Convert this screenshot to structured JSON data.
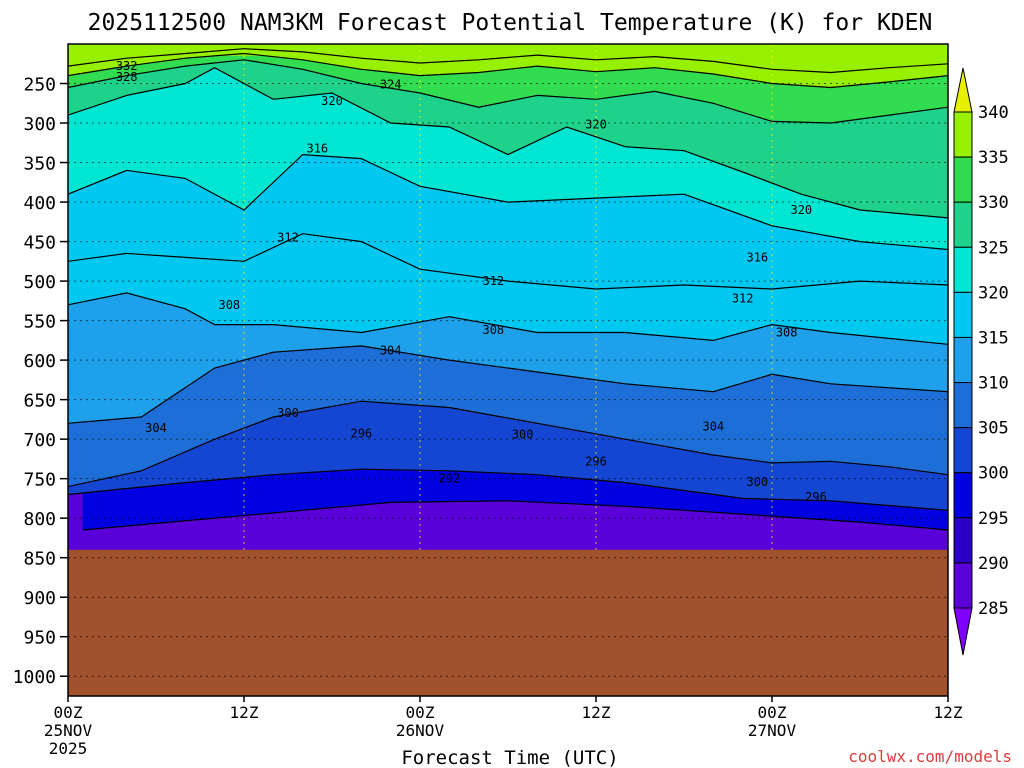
{
  "chart_data": {
    "type": "heatmap",
    "title": "2025112500 NAM3KM Forecast Potential Temperature (K) for KDEN",
    "xlabel": "Forecast Time (UTC)",
    "ylabel": "",
    "credit": "coolwx.com/models",
    "x_ticks": [
      {
        "hour": 0,
        "label": "00Z",
        "sub1": "25NOV",
        "sub2": "2025"
      },
      {
        "hour": 12,
        "label": "12Z",
        "sub1": "",
        "sub2": ""
      },
      {
        "hour": 24,
        "label": "00Z",
        "sub1": "26NOV",
        "sub2": ""
      },
      {
        "hour": 36,
        "label": "12Z",
        "sub1": "",
        "sub2": ""
      },
      {
        "hour": 48,
        "label": "00Z",
        "sub1": "27NOV",
        "sub2": ""
      },
      {
        "hour": 60,
        "label": "12Z",
        "sub1": "",
        "sub2": ""
      }
    ],
    "xlim_hours": [
      0,
      60
    ],
    "y_ticks": [
      250,
      300,
      350,
      400,
      450,
      500,
      550,
      600,
      650,
      700,
      750,
      800,
      850,
      900,
      950,
      1000
    ],
    "ylim_hPa": [
      200,
      1025
    ],
    "surface_pressure_hPa": 840,
    "colorbar": {
      "labels": [
        "285",
        "290",
        "295",
        "300",
        "305",
        "310",
        "315",
        "320",
        "325",
        "330",
        "335",
        "340"
      ],
      "colors": [
        "#7f00ff",
        "#5a00d8",
        "#2a00c8",
        "#0000e0",
        "#1446d2",
        "#1e6ed7",
        "#1ea0eb",
        "#00c8f0",
        "#00e6d2",
        "#1ed28c",
        "#32dc50",
        "#96f000",
        "#e6f000"
      ]
    },
    "grid": true,
    "contours": [
      {
        "theta": 292,
        "points": [
          [
            1,
            815
          ],
          [
            10,
            800
          ],
          [
            16,
            790
          ],
          [
            22,
            780
          ],
          [
            30,
            778
          ],
          [
            38,
            785
          ],
          [
            46,
            795
          ],
          [
            54,
            805
          ],
          [
            60,
            815
          ]
        ]
      },
      {
        "theta": 296,
        "points": [
          [
            0,
            770
          ],
          [
            8,
            755
          ],
          [
            14,
            745
          ],
          [
            20,
            738
          ],
          [
            26,
            740
          ],
          [
            32,
            745
          ],
          [
            38,
            755
          ],
          [
            46,
            775
          ],
          [
            52,
            778
          ],
          [
            60,
            790
          ]
        ]
      },
      {
        "theta": 300,
        "points": [
          [
            0,
            760
          ],
          [
            5,
            740
          ],
          [
            10,
            700
          ],
          [
            14,
            672
          ],
          [
            20,
            652
          ],
          [
            26,
            660
          ],
          [
            32,
            680
          ],
          [
            38,
            700
          ],
          [
            44,
            720
          ],
          [
            48,
            730
          ],
          [
            52,
            728
          ],
          [
            56,
            735
          ],
          [
            60,
            745
          ]
        ]
      },
      {
        "theta": 304,
        "points": [
          [
            0,
            680
          ],
          [
            5,
            672
          ],
          [
            10,
            610
          ],
          [
            14,
            590
          ],
          [
            20,
            582
          ],
          [
            26,
            600
          ],
          [
            32,
            615
          ],
          [
            38,
            630
          ],
          [
            44,
            640
          ],
          [
            48,
            618
          ],
          [
            52,
            630
          ],
          [
            60,
            640
          ]
        ]
      },
      {
        "theta": 308,
        "points": [
          [
            0,
            530
          ],
          [
            4,
            515
          ],
          [
            8,
            535
          ],
          [
            10,
            555
          ],
          [
            14,
            555
          ],
          [
            20,
            565
          ],
          [
            26,
            545
          ],
          [
            32,
            565
          ],
          [
            38,
            565
          ],
          [
            44,
            575
          ],
          [
            48,
            555
          ],
          [
            52,
            565
          ],
          [
            60,
            580
          ]
        ]
      },
      {
        "theta": 312,
        "points": [
          [
            0,
            475
          ],
          [
            4,
            465
          ],
          [
            8,
            470
          ],
          [
            12,
            475
          ],
          [
            16,
            440
          ],
          [
            20,
            450
          ],
          [
            24,
            485
          ],
          [
            30,
            500
          ],
          [
            36,
            510
          ],
          [
            42,
            505
          ],
          [
            48,
            510
          ],
          [
            54,
            500
          ],
          [
            60,
            505
          ]
        ]
      },
      {
        "theta": 316,
        "points": [
          [
            0,
            390
          ],
          [
            4,
            360
          ],
          [
            8,
            370
          ],
          [
            12,
            410
          ],
          [
            16,
            340
          ],
          [
            20,
            345
          ],
          [
            24,
            380
          ],
          [
            30,
            400
          ],
          [
            36,
            395
          ],
          [
            42,
            390
          ],
          [
            48,
            430
          ],
          [
            54,
            450
          ],
          [
            60,
            460
          ]
        ]
      },
      {
        "theta": 320,
        "points": [
          [
            0,
            290
          ],
          [
            4,
            265
          ],
          [
            8,
            250
          ],
          [
            10,
            230
          ],
          [
            14,
            270
          ],
          [
            18,
            262
          ],
          [
            22,
            300
          ],
          [
            26,
            305
          ],
          [
            30,
            340
          ],
          [
            34,
            305
          ],
          [
            38,
            330
          ],
          [
            42,
            335
          ],
          [
            46,
            362
          ],
          [
            50,
            390
          ],
          [
            54,
            410
          ],
          [
            60,
            420
          ]
        ]
      },
      {
        "theta": 324,
        "points": [
          [
            0,
            255
          ],
          [
            4,
            240
          ],
          [
            8,
            228
          ],
          [
            12,
            220
          ],
          [
            16,
            232
          ],
          [
            20,
            250
          ],
          [
            24,
            262
          ],
          [
            28,
            280
          ],
          [
            32,
            265
          ],
          [
            36,
            270
          ],
          [
            40,
            260
          ],
          [
            44,
            275
          ],
          [
            48,
            298
          ],
          [
            52,
            300
          ],
          [
            56,
            290
          ],
          [
            60,
            280
          ]
        ]
      },
      {
        "theta": 328,
        "points": [
          [
            0,
            240
          ],
          [
            4,
            228
          ],
          [
            8,
            218
          ],
          [
            12,
            212
          ],
          [
            16,
            220
          ],
          [
            20,
            232
          ],
          [
            24,
            240
          ],
          [
            28,
            236
          ],
          [
            32,
            228
          ],
          [
            36,
            235
          ],
          [
            40,
            230
          ],
          [
            44,
            238
          ],
          [
            48,
            250
          ],
          [
            52,
            255
          ],
          [
            56,
            248
          ],
          [
            60,
            240
          ]
        ]
      },
      {
        "theta": 332,
        "points": [
          [
            0,
            228
          ],
          [
            4,
            218
          ],
          [
            8,
            212
          ],
          [
            12,
            206
          ],
          [
            16,
            210
          ],
          [
            20,
            218
          ],
          [
            24,
            224
          ],
          [
            28,
            220
          ],
          [
            32,
            214
          ],
          [
            36,
            220
          ],
          [
            40,
            216
          ],
          [
            44,
            222
          ],
          [
            48,
            232
          ],
          [
            52,
            236
          ],
          [
            56,
            230
          ],
          [
            60,
            225
          ]
        ]
      }
    ],
    "contour_labels": [
      {
        "text": "332",
        "hour": 4,
        "p": 228
      },
      {
        "text": "328",
        "hour": 4,
        "p": 242
      },
      {
        "text": "324",
        "hour": 22,
        "p": 251
      },
      {
        "text": "320",
        "hour": 18,
        "p": 272
      },
      {
        "text": "320",
        "hour": 36,
        "p": 302
      },
      {
        "text": "316",
        "hour": 17,
        "p": 332
      },
      {
        "text": "320",
        "hour": 50,
        "p": 410
      },
      {
        "text": "312",
        "hour": 15,
        "p": 445
      },
      {
        "text": "316",
        "hour": 47,
        "p": 470
      },
      {
        "text": "312",
        "hour": 29,
        "p": 500
      },
      {
        "text": "312",
        "hour": 46,
        "p": 522
      },
      {
        "text": "308",
        "hour": 11,
        "p": 530
      },
      {
        "text": "308",
        "hour": 29,
        "p": 562
      },
      {
        "text": "308",
        "hour": 49,
        "p": 565
      },
      {
        "text": "304",
        "hour": 22,
        "p": 588
      },
      {
        "text": "300",
        "hour": 15,
        "p": 667
      },
      {
        "text": "304",
        "hour": 6,
        "p": 686
      },
      {
        "text": "304",
        "hour": 44,
        "p": 684
      },
      {
        "text": "296",
        "hour": 20,
        "p": 693
      },
      {
        "text": "300",
        "hour": 31,
        "p": 694
      },
      {
        "text": "296",
        "hour": 36,
        "p": 728
      },
      {
        "text": "292",
        "hour": 26,
        "p": 750
      },
      {
        "text": "300",
        "hour": 47,
        "p": 754
      },
      {
        "text": "296",
        "hour": 51,
        "p": 773
      }
    ]
  }
}
